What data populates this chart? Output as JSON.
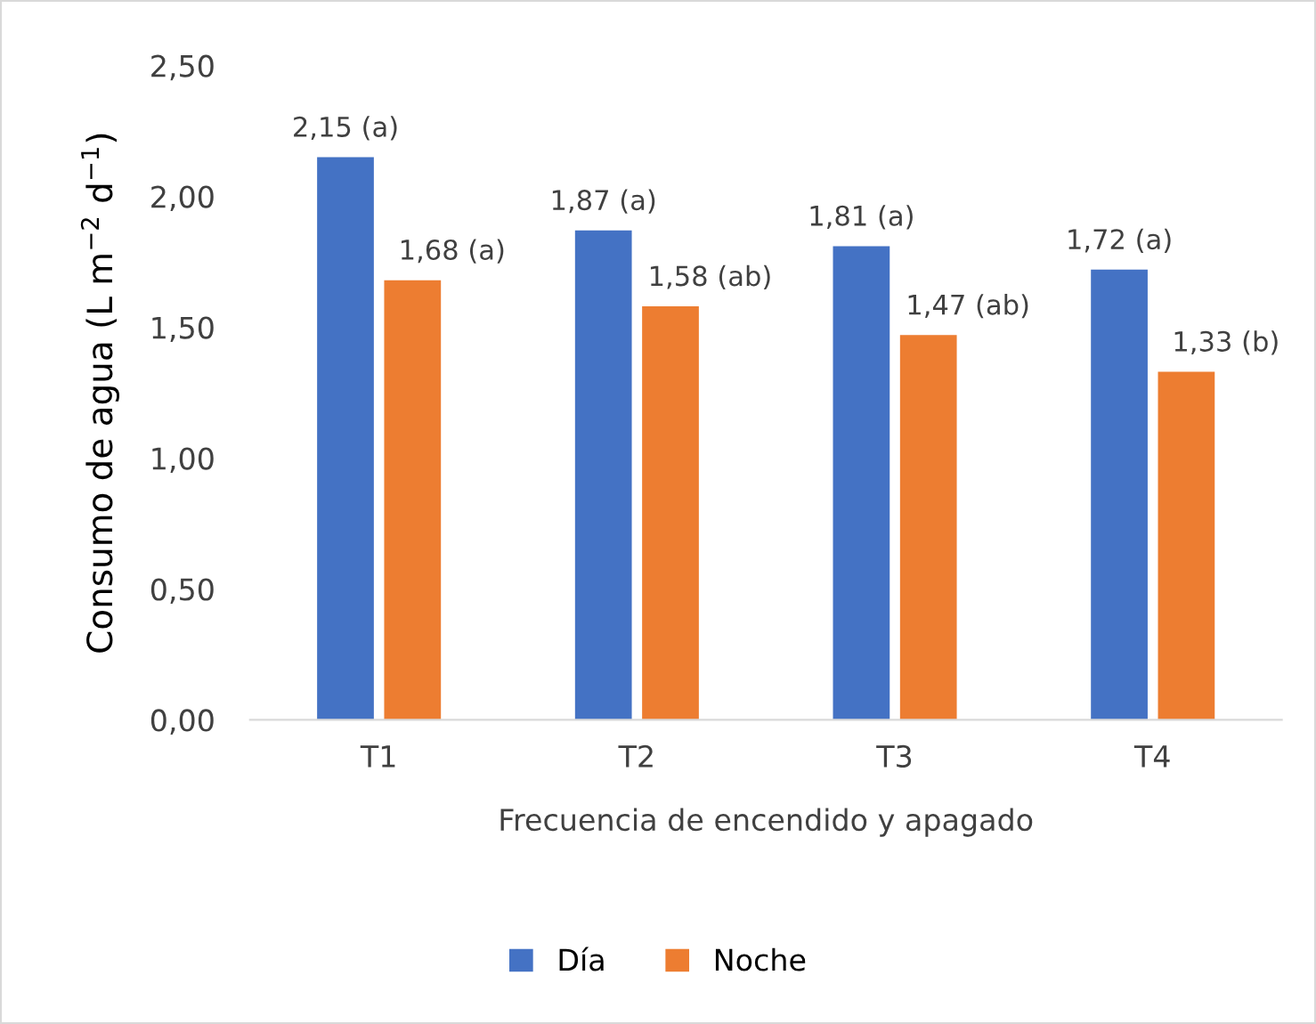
{
  "chart_data": {
    "type": "bar",
    "xlabel": "Frecuencia de encendido y apagado",
    "ylabel": "Consumo de agua (L m$^{−2}$ d$^{−1}$)",
    "categories": [
      "T1",
      "T2",
      "T3",
      "T4"
    ],
    "series": [
      {
        "name": "Día",
        "color": "#4472c4",
        "values": [
          2.15,
          1.87,
          1.81,
          1.72
        ],
        "value_labels": [
          "2,15 (a)",
          "1,87 (a)",
          "1,81 (a)",
          "1,72 (a)"
        ]
      },
      {
        "name": "Noche",
        "color": "#ed7d31",
        "values": [
          1.68,
          1.58,
          1.47,
          1.33
        ],
        "value_labels": [
          "1,68 (a)",
          "1,58 (ab)",
          "1,47 (ab)",
          "1,33 (b)"
        ]
      }
    ],
    "ylim": [
      0,
      2.5
    ],
    "yticks": [
      {
        "value": 0,
        "label": "0,00"
      },
      {
        "value": 0.5,
        "label": "0,50"
      },
      {
        "value": 1,
        "label": "1,00"
      },
      {
        "value": 1.5,
        "label": "1,50"
      },
      {
        "value": 2,
        "label": "2,00"
      },
      {
        "value": 2.5,
        "label": "2,50"
      }
    ],
    "grid": false,
    "legend": "bottom"
  }
}
